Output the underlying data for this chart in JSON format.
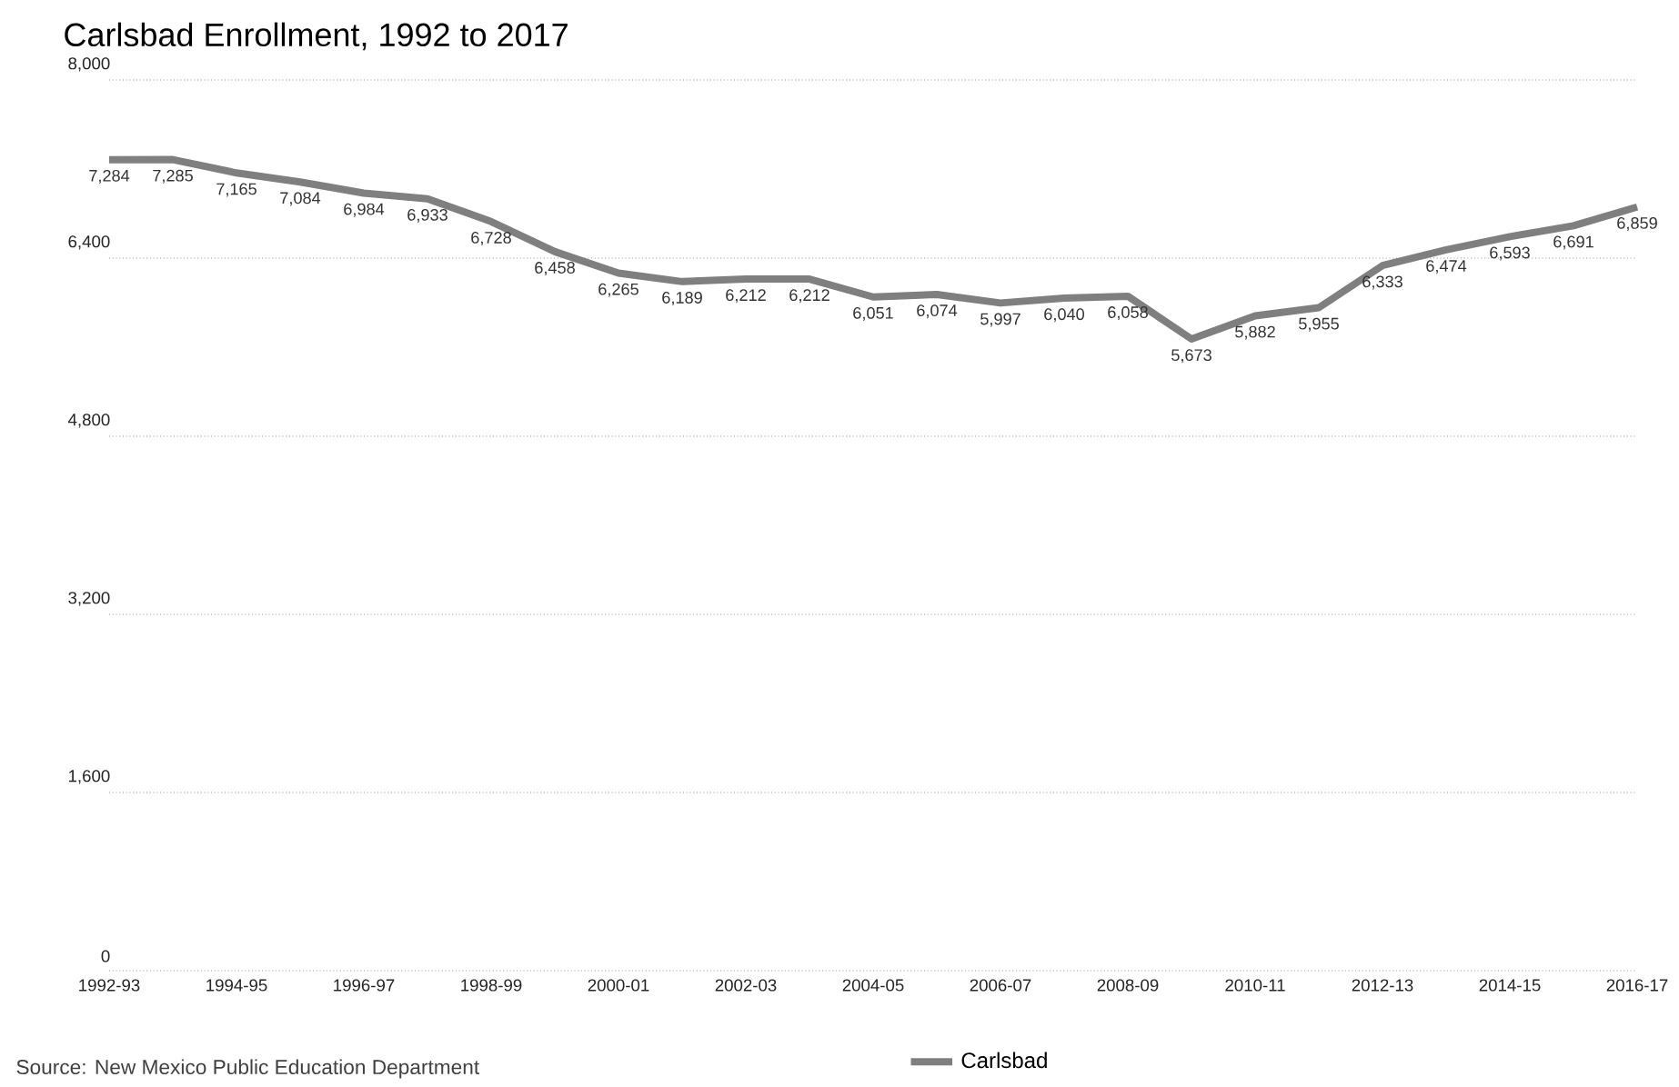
{
  "chart_data": {
    "type": "line",
    "title": "Carlsbad Enrollment, 1992 to 2017",
    "categories": [
      "1992-93",
      null,
      "1994-95",
      null,
      "1996-97",
      null,
      "1998-99",
      null,
      "2000-01",
      null,
      "2002-03",
      null,
      "2004-05",
      null,
      "2006-07",
      null,
      "2008-09",
      null,
      "2010-11",
      null,
      "2012-13",
      null,
      "2014-15",
      null,
      "2016-17"
    ],
    "series": [
      {
        "name": "Carlsbad",
        "color": "#7f7f7f",
        "values": [
          7284,
          7285,
          7165,
          7084,
          6984,
          6933,
          6728,
          6458,
          6265,
          6189,
          6212,
          6212,
          6051,
          6074,
          5997,
          6040,
          6058,
          5673,
          5882,
          5955,
          6333,
          6474,
          6593,
          6691,
          6859
        ],
        "value_labels": [
          "7,284",
          "7,285",
          "7,165",
          "7,084",
          "6,984",
          "6,933",
          "6,728",
          "6,458",
          "6,265",
          "6,189",
          "6,212",
          "6,212",
          "6,051",
          "6,074",
          "5,997",
          "6,040",
          "6,058",
          "5,673",
          "5,882",
          "5,955",
          "6,333",
          "6,474",
          "6,593",
          "6,691",
          "6,859"
        ]
      }
    ],
    "ylim": [
      0,
      8000
    ],
    "yticks": [
      {
        "value": 0,
        "label": "0"
      },
      {
        "value": 1600,
        "label": "1,600"
      },
      {
        "value": 3200,
        "label": "3,200"
      },
      {
        "value": 4800,
        "label": "4,800"
      },
      {
        "value": 6400,
        "label": "6,400"
      },
      {
        "value": 8000,
        "label": "8,000"
      }
    ],
    "grid": "y",
    "legend": "bottom",
    "annotations": [
      "Source: New Mexico Public Education Department"
    ]
  }
}
